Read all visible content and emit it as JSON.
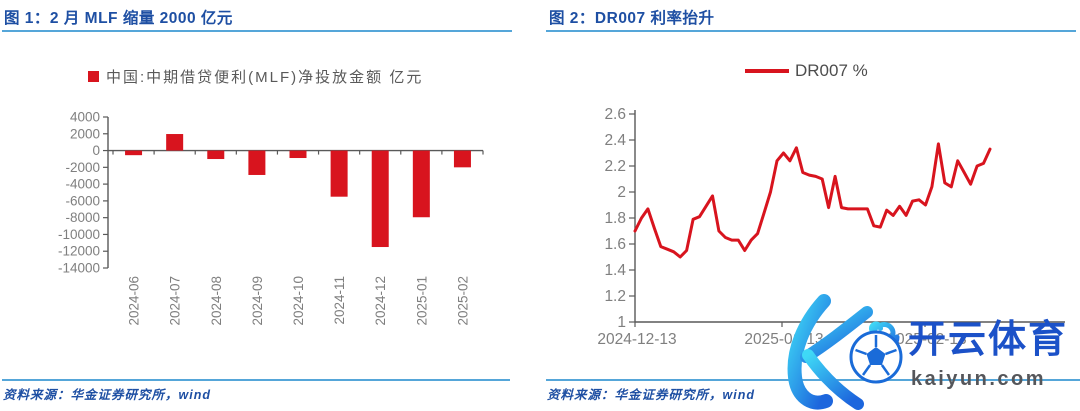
{
  "figure1": {
    "title": "图 1：2 月 MLF 缩量 2000 亿元",
    "source": "资料来源：华金证券研究所，wind"
  },
  "figure2": {
    "title": "图 2：DR007 利率抬升",
    "source": "资料来源：华金证券研究所，wind"
  },
  "watermark": {
    "logo": "kaiyun-k-soccer-logo",
    "brand": "开云体育",
    "domain": "kaiyun.com"
  },
  "colors": {
    "red": "#d8141e",
    "blue": "#1e4fa3",
    "rule": "#55a6d9",
    "gray": "#7f7f7f",
    "axis": "#595959",
    "wmblue": "#1b51c8",
    "wmgray": "#55565a"
  },
  "chart_data": [
    {
      "type": "bar",
      "title": "图 1：2 月 MLF 缩量 2000 亿元",
      "legend": "中国:中期借贷便利(MLF)净投放金额 亿元",
      "categories": [
        "2024-06",
        "2024-07",
        "2024-08",
        "2024-09",
        "2024-10",
        "2024-11",
        "2024-12",
        "2025-01",
        "2025-02"
      ],
      "values": [
        -550,
        1970,
        -1010,
        -2910,
        -890,
        -5500,
        -11500,
        -7950,
        -2000
      ],
      "xlabel": "",
      "ylabel": "亿元",
      "ylim": [
        -14000,
        4000
      ],
      "ytick_step": 2000,
      "grid": false,
      "legend_position": "top"
    },
    {
      "type": "line",
      "title": "图 2：DR007 利率抬升",
      "legend": "DR007 %",
      "x_tick_labels": [
        "2024-12-13",
        "2025-01-13",
        "2025-02-13"
      ],
      "values": [
        1.7,
        1.8,
        1.87,
        1.72,
        1.58,
        1.56,
        1.54,
        1.5,
        1.55,
        1.79,
        1.81,
        1.89,
        1.97,
        1.7,
        1.65,
        1.63,
        1.63,
        1.55,
        1.63,
        1.68,
        1.84,
        2.0,
        2.24,
        2.3,
        2.24,
        2.34,
        2.15,
        2.13,
        2.12,
        2.1,
        1.88,
        2.12,
        1.88,
        1.87,
        1.87,
        1.87,
        1.87,
        1.74,
        1.73,
        1.86,
        1.82,
        1.89,
        1.82,
        1.93,
        1.94,
        1.9,
        2.04,
        2.37,
        2.07,
        2.04,
        2.24,
        2.15,
        2.06,
        2.2,
        2.22,
        2.33
      ],
      "xlabel": "",
      "ylabel": "%",
      "ylim": [
        1,
        2.6
      ],
      "ytick_step": 0.2,
      "grid": false,
      "legend_position": "top"
    }
  ]
}
